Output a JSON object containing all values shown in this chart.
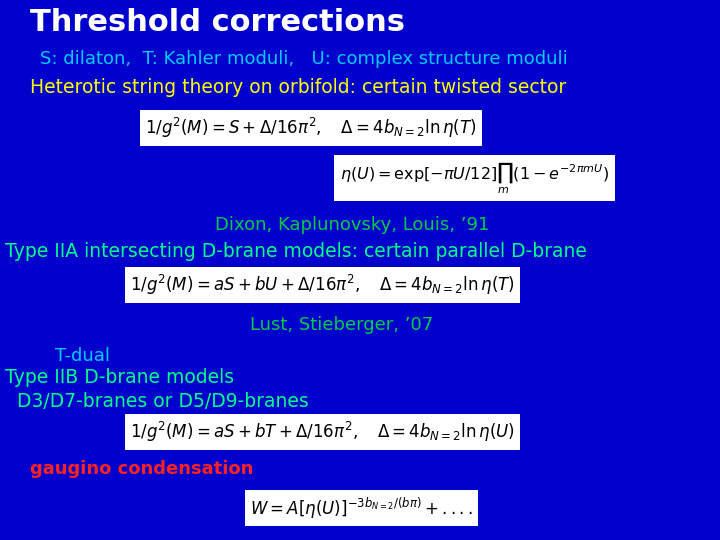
{
  "background_color": "#0000cc",
  "title": "Threshold corrections",
  "title_color": "#ffffff",
  "title_fontsize": 22,
  "subtitle": "S: dilaton,  T: Kahler moduli,   U: complex structure moduli",
  "subtitle_color": "#00ccff",
  "subtitle_fontsize": 13,
  "line3": "Heterotic string theory on orbifold: certain twisted sector",
  "line3_color": "#ffff00",
  "line3_fontsize": 13.5,
  "citation1": "Dixon, Kaplunovsky, Louis, ’91",
  "citation1_color": "#00cc44",
  "citation1_fontsize": 13,
  "line4": "Type IIA intersecting D-brane models: certain parallel D-brane",
  "line4_color": "#00ff88",
  "line4_fontsize": 13.5,
  "citation2": "Lust, Stieberger, ’07",
  "citation2_color": "#00cc44",
  "citation2_fontsize": 13,
  "line5": "T-dual",
  "line5_color": "#00ccff",
  "line5_fontsize": 13,
  "line6": "Type IIB D-brane models",
  "line6_color": "#00ff88",
  "line6_fontsize": 13.5,
  "line7": "  D3/D7-branes or D5/D9-branes",
  "line7_color": "#00ff88",
  "line7_fontsize": 13.5,
  "line8": "gaugino condensation",
  "line8_color": "#ff2222",
  "line8_fontsize": 13
}
